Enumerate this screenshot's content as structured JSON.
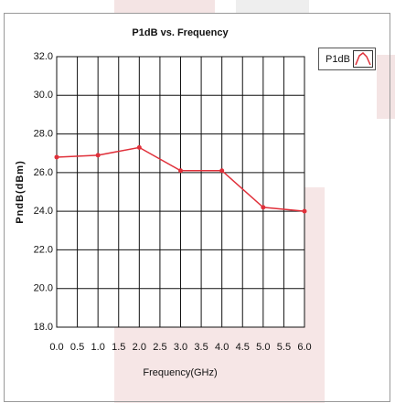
{
  "chart_data": {
    "type": "line",
    "title": "P1dB vs. Frequency",
    "x_label": "Frequency(GHz)",
    "y_label": "PndB(dBm)",
    "x": [
      0,
      1,
      2,
      3,
      4,
      5,
      6
    ],
    "series": [
      {
        "name": "P1dB",
        "color": "#e0303a",
        "values": [
          26.8,
          26.9,
          27.3,
          26.1,
          26.1,
          24.2,
          24.0
        ]
      }
    ],
    "xlim": [
      0,
      6
    ],
    "xticks": [
      {
        "value": 0,
        "label": "0.0"
      },
      {
        "value": 0.5,
        "label": "0.5"
      },
      {
        "value": 1,
        "label": "1.0"
      },
      {
        "value": 1.5,
        "label": "1.5"
      },
      {
        "value": 2,
        "label": "2.0"
      },
      {
        "value": 2.5,
        "label": "2.5"
      },
      {
        "value": 3,
        "label": "3.0"
      },
      {
        "value": 3.5,
        "label": "3.5"
      },
      {
        "value": 4,
        "label": "4.0"
      },
      {
        "value": 4.5,
        "label": "4.5"
      },
      {
        "value": 5,
        "label": "5.0"
      },
      {
        "value": 5.5,
        "label": "5.5"
      },
      {
        "value": 6,
        "label": "6.0"
      }
    ],
    "ylim": [
      18,
      32
    ],
    "yticks": [
      {
        "value": 18,
        "label": "18.0"
      },
      {
        "value": 20,
        "label": "20.0"
      },
      {
        "value": 22,
        "label": "22.0"
      },
      {
        "value": 24,
        "label": "24.0"
      },
      {
        "value": 26,
        "label": "26.0"
      },
      {
        "value": 28,
        "label": "28.0"
      },
      {
        "value": 30,
        "label": "30.0"
      },
      {
        "value": 32,
        "label": "32.0"
      }
    ],
    "grid": true,
    "legend": "top-right"
  }
}
